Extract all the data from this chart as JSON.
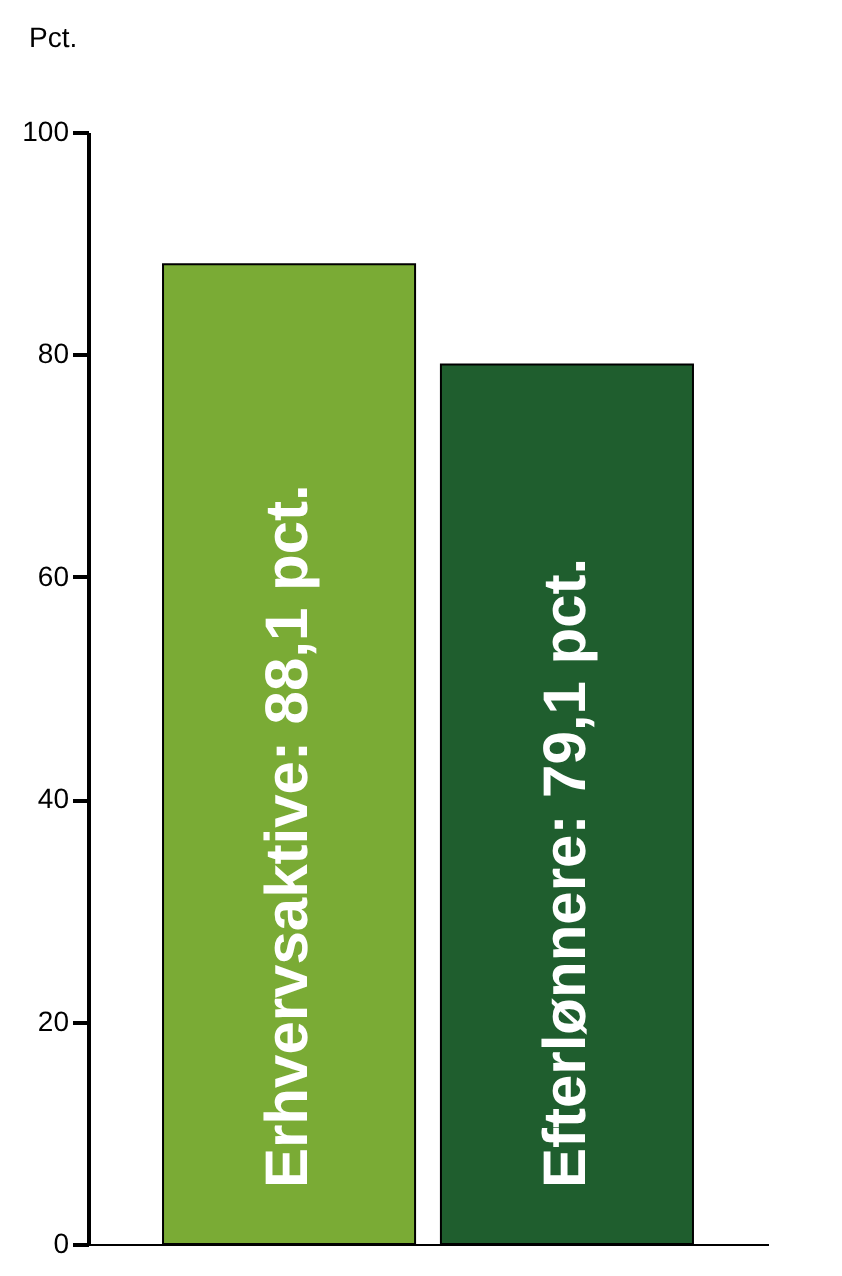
{
  "chart_data": {
    "type": "bar",
    "ylabel": "Pct.",
    "categories": [
      "Erhvervsaktive: 88,1 pct.",
      "Efterlønnere: 79,1 pct."
    ],
    "values": [
      88.1,
      79.1
    ],
    "colors": [
      "#7aab35",
      "#1f5e2e"
    ],
    "ylim": [
      0,
      100
    ],
    "yticks": [
      0,
      20,
      40,
      60,
      80,
      100
    ],
    "grid": false,
    "legend": false,
    "tick_labels": "y"
  }
}
